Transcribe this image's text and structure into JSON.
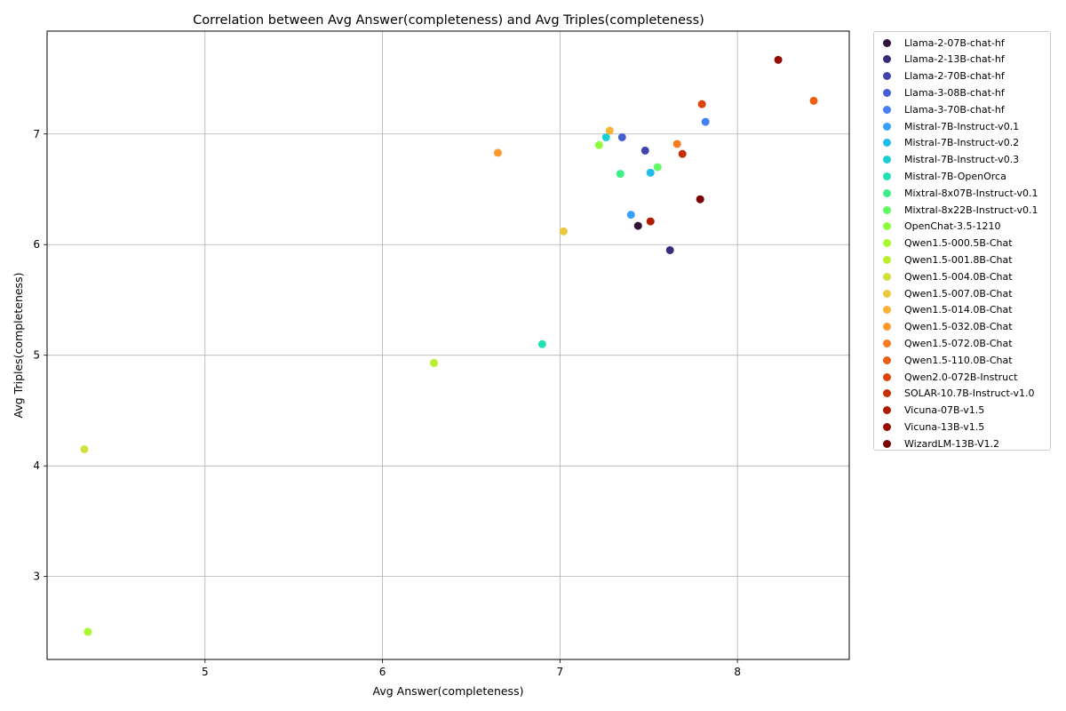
{
  "chart_data": {
    "type": "scatter",
    "title": "Correlation between Avg Answer(completeness) and Avg Triples(completeness)",
    "xlabel": "Avg Answer(completeness)",
    "ylabel": "Avg Triples(completeness)",
    "xlim": [
      4.11,
      8.63
    ],
    "ylim": [
      2.25,
      7.93
    ],
    "xticks": [
      5,
      6,
      7,
      8
    ],
    "yticks": [
      3,
      4,
      5,
      6,
      7
    ],
    "grid": true,
    "legend_position": "outside right",
    "series": [
      {
        "name": "Llama-2-07B-chat-hf",
        "color": "#30123b",
        "x": 7.44,
        "y": 6.17
      },
      {
        "name": "Llama-2-13B-chat-hf",
        "color": "#3c2a7c",
        "x": 7.62,
        "y": 5.95
      },
      {
        "name": "Llama-2-70B-chat-hf",
        "color": "#4145ab",
        "x": 7.48,
        "y": 6.85
      },
      {
        "name": "Llama-3-08B-chat-hf",
        "color": "#4660d2",
        "x": 7.35,
        "y": 6.97
      },
      {
        "name": "Llama-3-70B-chat-hf",
        "color": "#4680f6",
        "x": 7.82,
        "y": 7.11
      },
      {
        "name": "Mistral-7B-Instruct-v0.1",
        "color": "#38a0fe",
        "x": 7.4,
        "y": 6.27
      },
      {
        "name": "Mistral-7B-Instruct-v0.2",
        "color": "#22bbed",
        "x": 7.51,
        "y": 6.65
      },
      {
        "name": "Mistral-7B-Instruct-v0.3",
        "color": "#1acfd4",
        "x": 7.26,
        "y": 6.97
      },
      {
        "name": "Mistral-7B-OpenOrca",
        "color": "#1fe1b3",
        "x": 6.9,
        "y": 5.1
      },
      {
        "name": "Mixtral-8x07B-Instruct-v0.1",
        "color": "#3def88",
        "x": 7.34,
        "y": 6.64
      },
      {
        "name": "Mixtral-8x22B-Instruct-v0.1",
        "color": "#5ffa64",
        "x": 7.55,
        "y": 6.7
      },
      {
        "name": "OpenChat-3.5-1210",
        "color": "#8cfe3f",
        "x": 7.22,
        "y": 6.9
      },
      {
        "name": "Qwen1.5-000.5B-Chat",
        "color": "#a8fa2e",
        "x": 4.34,
        "y": 2.5
      },
      {
        "name": "Qwen1.5-001.8B-Chat",
        "color": "#baef30",
        "x": 6.29,
        "y": 4.93
      },
      {
        "name": "Qwen1.5-004.0B-Chat",
        "color": "#d3e03b",
        "x": 4.32,
        "y": 4.15
      },
      {
        "name": "Qwen1.5-007.0B-Chat",
        "color": "#ecc93b",
        "x": 7.02,
        "y": 6.12
      },
      {
        "name": "Qwen1.5-014.0B-Chat",
        "color": "#fbb337",
        "x": 7.28,
        "y": 7.03
      },
      {
        "name": "Qwen1.5-032.0B-Chat",
        "color": "#fe992c",
        "x": 6.65,
        "y": 6.83
      },
      {
        "name": "Qwen1.5-072.0B-Chat",
        "color": "#f97a1f",
        "x": 7.66,
        "y": 6.91
      },
      {
        "name": "Qwen1.5-110.0B-Chat",
        "color": "#ec5e13",
        "x": 8.43,
        "y": 7.3
      },
      {
        "name": "Qwen2.0-072B-Instruct",
        "color": "#dd4409",
        "x": 7.8,
        "y": 7.27
      },
      {
        "name": "SOLAR-10.7B-Instruct-v1.0",
        "color": "#c62f05",
        "x": 7.69,
        "y": 6.82
      },
      {
        "name": "Vicuna-07B-v1.5",
        "color": "#b01c02",
        "x": 7.51,
        "y": 6.21
      },
      {
        "name": "Vicuna-13B-v1.5",
        "color": "#960e02",
        "x": 8.23,
        "y": 7.67
      },
      {
        "name": "WizardLM-13B-V1.2",
        "color": "#7a0403",
        "x": 7.79,
        "y": 6.41
      }
    ]
  }
}
